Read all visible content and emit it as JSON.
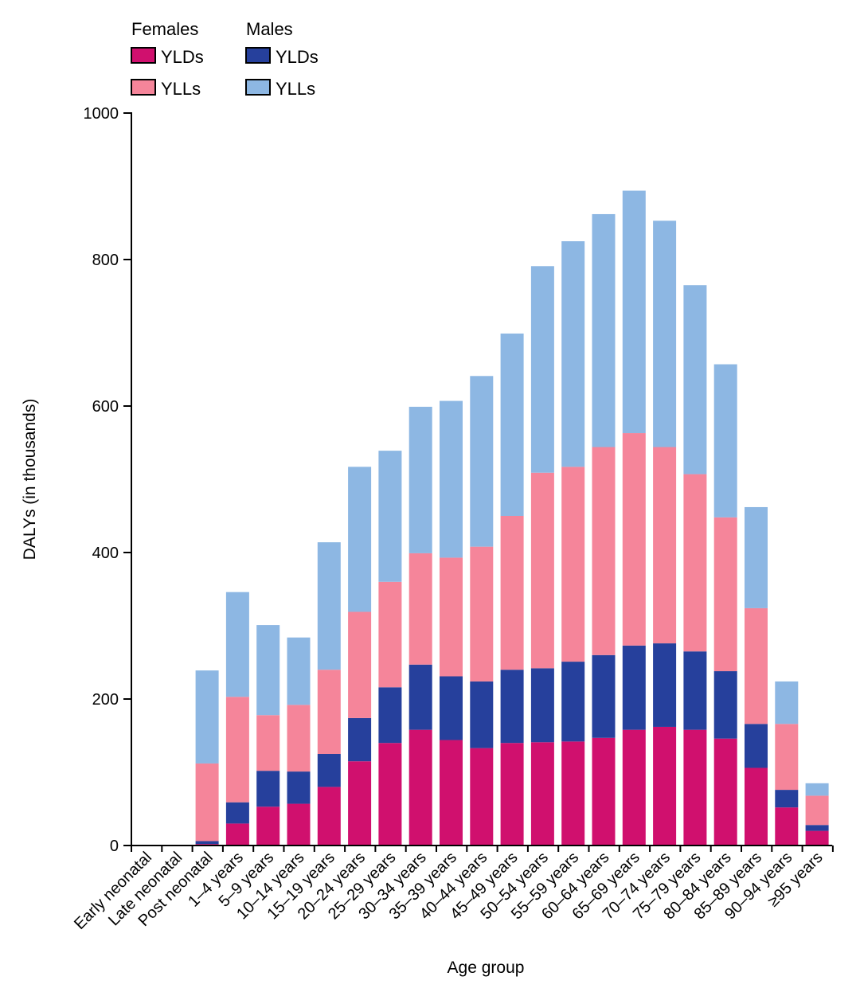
{
  "chart_data": {
    "type": "bar",
    "stacked": true,
    "xlabel": "Age group",
    "ylabel": "DALYs (in thousands)",
    "ylim": [
      0,
      1000
    ],
    "yticks": [
      0,
      200,
      400,
      600,
      800,
      1000
    ],
    "grid": false,
    "legend_position": "top-left",
    "legend": {
      "groups": [
        {
          "title": "Females",
          "items": [
            {
              "label": "YLDs",
              "color": "#d0106e"
            },
            {
              "label": "YLLs",
              "color": "#f5859a"
            }
          ]
        },
        {
          "title": "Males",
          "items": [
            {
              "label": "YLDs",
              "color": "#26409c"
            },
            {
              "label": "YLLs",
              "color": "#8db7e3"
            }
          ]
        }
      ]
    },
    "categories": [
      "Early neonatal",
      "Late neonatal",
      "Post neonatal",
      "1–4 years",
      "5–9 years",
      "10–14 years",
      "15–19 years",
      "20–24 years",
      "25–29 years",
      "30–34 years",
      "35–39 years",
      "40–44 years",
      "45–49 years",
      "50–54 years",
      "55–59 years",
      "60–64 years",
      "65–69 years",
      "70–74 years",
      "75–79 years",
      "80–84 years",
      "85–89 years",
      "90–94 years",
      "≥95 years"
    ],
    "series": [
      {
        "name": "YLDs",
        "group": "Females",
        "color": "#d0106e",
        "values": [
          0,
          0,
          2,
          30,
          53,
          57,
          80,
          115,
          140,
          158,
          144,
          133,
          140,
          141,
          142,
          147,
          158,
          162,
          158,
          146,
          106,
          52,
          20
        ]
      },
      {
        "name": "YLDs",
        "group": "Males",
        "color": "#26409c",
        "values": [
          0,
          0,
          4,
          29,
          49,
          44,
          45,
          59,
          76,
          89,
          87,
          91,
          100,
          101,
          109,
          113,
          115,
          114,
          107,
          92,
          60,
          24,
          8
        ]
      },
      {
        "name": "YLLs",
        "group": "Females",
        "color": "#f5859a",
        "values": [
          0,
          0,
          106,
          144,
          76,
          91,
          115,
          145,
          144,
          152,
          162,
          184,
          210,
          267,
          266,
          284,
          290,
          268,
          242,
          210,
          158,
          90,
          40
        ]
      },
      {
        "name": "YLLs",
        "group": "Males",
        "color": "#8db7e3",
        "values": [
          0,
          0,
          127,
          143,
          123,
          92,
          174,
          198,
          179,
          200,
          214,
          233,
          249,
          282,
          308,
          318,
          331,
          309,
          258,
          209,
          138,
          58,
          17
        ]
      }
    ]
  }
}
